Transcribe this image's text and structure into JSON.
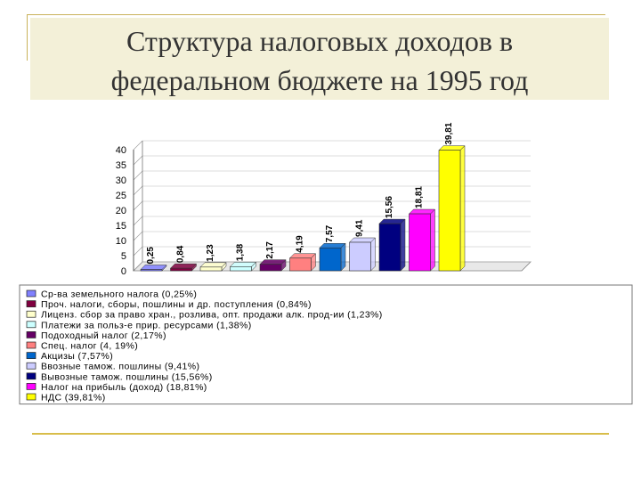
{
  "slide": {
    "title_line1": "Структура налоговых доходов в",
    "title_line2": "федеральном бюджете на 1995 год",
    "accent_color": "#d8bd4a"
  },
  "chart_data": {
    "type": "bar",
    "title": "",
    "xlabel": "",
    "ylabel": "",
    "ylim": [
      0,
      40
    ],
    "y_ticks": [
      "0",
      "5",
      "10",
      "15",
      "20",
      "25",
      "30",
      "35",
      "40"
    ],
    "grid": true,
    "legend_position": "bottom",
    "categories": [
      "Ср-ва земельного налога (0,25%)",
      "Проч. налоги, сборы, пошлины и др. поступления (0,84%)",
      "Лиценз. сбор за право хран., розлива, опт. продажи алк. прод-ии (1,23%)",
      "Платежи за польз-е прир. ресурсами (1,38%)",
      "Подоходный налог (2,17%)",
      "Спец. налог (4, 19%)",
      "Акцизы (7,57%)",
      "Ввозные тамож. пошлины (9,41%)",
      "Вывозные тамож. пошлины (15,56%)",
      "Налог на прибыль (доход) (18,81%)",
      "НДС (39,81%)"
    ],
    "values": [
      0.25,
      0.84,
      1.23,
      1.38,
      2.17,
      4.19,
      7.57,
      9.41,
      15.56,
      18.81,
      39.81
    ],
    "data_labels": [
      "0,25",
      "0,84",
      "1,23",
      "1,38",
      "2,17",
      "4,19",
      "7,57",
      "9,41",
      "15,56",
      "18,81",
      "39,81"
    ],
    "colors": [
      "#8080ff",
      "#800040",
      "#ffffcc",
      "#ccffff",
      "#660066",
      "#ff8080",
      "#0066cc",
      "#ccccff",
      "#000080",
      "#ff00ff",
      "#ffff00"
    ]
  }
}
